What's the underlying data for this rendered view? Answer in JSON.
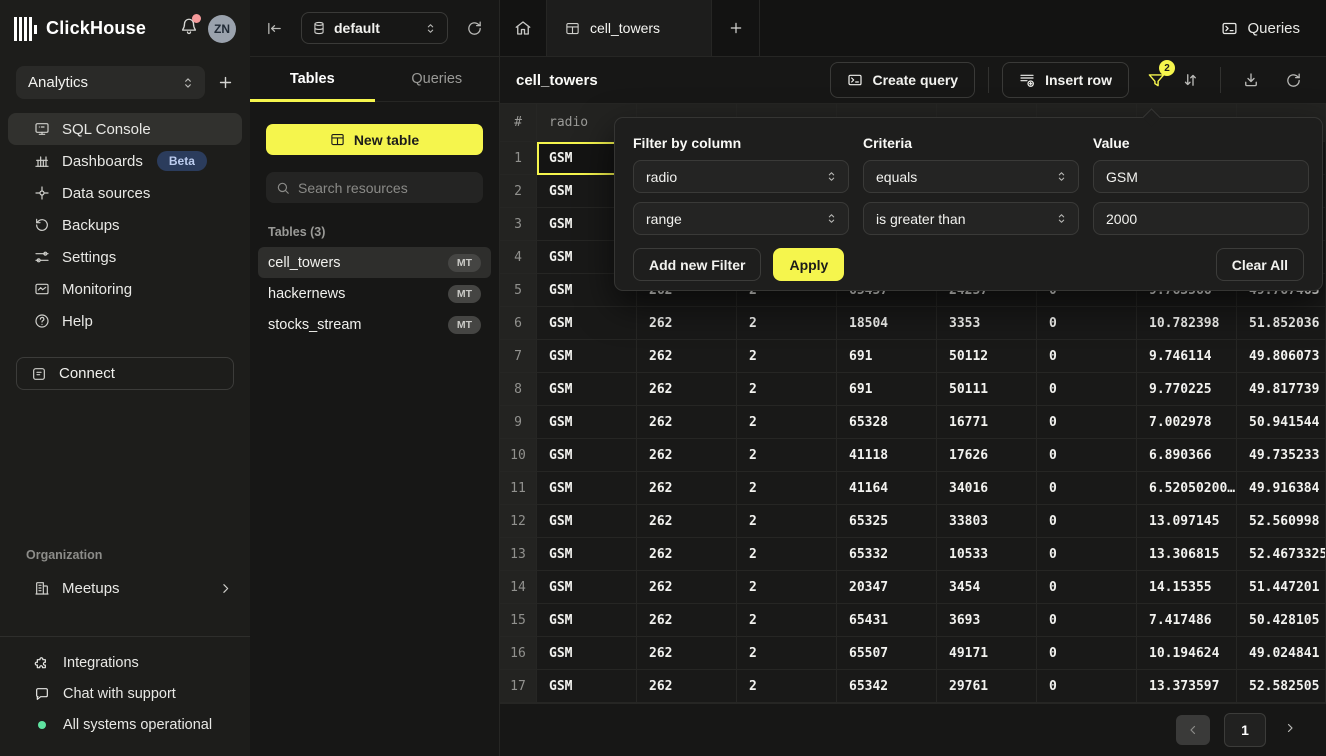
{
  "sidebar": {
    "brand": "ClickHouse",
    "avatar": "ZN",
    "workspace": "Analytics",
    "nav": [
      {
        "label": "SQL Console",
        "icon": "console-icon",
        "active": true
      },
      {
        "label": "Dashboards",
        "icon": "dashboards-icon",
        "badge": "Beta"
      },
      {
        "label": "Data sources",
        "icon": "data-sources-icon"
      },
      {
        "label": "Backups",
        "icon": "backups-icon"
      },
      {
        "label": "Settings",
        "icon": "settings-icon"
      },
      {
        "label": "Monitoring",
        "icon": "monitoring-icon"
      },
      {
        "label": "Help",
        "icon": "help-icon"
      }
    ],
    "connect_label": "Connect",
    "org_label": "Organization",
    "meetups_label": "Meetups",
    "footer": [
      {
        "label": "Integrations",
        "icon": "integrations-icon"
      },
      {
        "label": "Chat with support",
        "icon": "chat-icon"
      },
      {
        "label": "All systems operational",
        "icon": "status-dot"
      }
    ]
  },
  "explorer": {
    "database": "default",
    "tabs": [
      {
        "label": "Tables",
        "active": true
      },
      {
        "label": "Queries",
        "active": false
      }
    ],
    "new_table_label": "New table",
    "search_placeholder": "Search resources",
    "section_label": "Tables (3)",
    "tables": [
      {
        "name": "cell_towers",
        "badge": "MT",
        "selected": true
      },
      {
        "name": "hackernews",
        "badge": "MT",
        "selected": false
      },
      {
        "name": "stocks_stream",
        "badge": "MT",
        "selected": false
      }
    ]
  },
  "main": {
    "tab_label": "cell_towers",
    "queries_label": "Queries",
    "title": "cell_towers",
    "toolbar": {
      "create_query_label": "Create query",
      "insert_row_label": "Insert row",
      "filter_count": "2"
    },
    "pagination": {
      "page": "1"
    }
  },
  "filter_panel": {
    "headers": {
      "column": "Filter by column",
      "criteria": "Criteria",
      "value": "Value"
    },
    "rows": [
      {
        "column": "radio",
        "criteria": "equals",
        "value": "GSM"
      },
      {
        "column": "range",
        "criteria": "is greater than",
        "value": "2000"
      }
    ],
    "add_label": "Add new Filter",
    "apply_label": "Apply",
    "clear_label": "Clear All"
  },
  "table": {
    "headers": [
      "#",
      "radio",
      "",
      "",
      "",
      "",
      "",
      "",
      ""
    ],
    "rows": [
      [
        "1",
        "GSM",
        "",
        "",
        "",
        "",
        "",
        "",
        ""
      ],
      [
        "2",
        "GSM",
        "",
        "",
        "",
        "",
        "",
        "",
        ""
      ],
      [
        "3",
        "GSM",
        "",
        "",
        "",
        "",
        "",
        "",
        ""
      ],
      [
        "4",
        "GSM",
        "",
        "",
        "",
        "",
        "",
        "",
        ""
      ],
      [
        "5",
        "GSM",
        "262",
        "2",
        "65457",
        "24257",
        "0",
        "9.763566",
        "49.767463"
      ],
      [
        "6",
        "GSM",
        "262",
        "2",
        "18504",
        "3353",
        "0",
        "10.782398",
        "51.852036"
      ],
      [
        "7",
        "GSM",
        "262",
        "2",
        "691",
        "50112",
        "0",
        "9.746114",
        "49.806073"
      ],
      [
        "8",
        "GSM",
        "262",
        "2",
        "691",
        "50111",
        "0",
        "9.770225",
        "49.817739"
      ],
      [
        "9",
        "GSM",
        "262",
        "2",
        "65328",
        "16771",
        "0",
        "7.002978",
        "50.941544"
      ],
      [
        "10",
        "GSM",
        "262",
        "2",
        "41118",
        "17626",
        "0",
        "6.890366",
        "49.735233"
      ],
      [
        "11",
        "GSM",
        "262",
        "2",
        "41164",
        "34016",
        "0",
        "6.52050200…",
        "49.916384"
      ],
      [
        "12",
        "GSM",
        "262",
        "2",
        "65325",
        "33803",
        "0",
        "13.097145",
        "52.560998"
      ],
      [
        "13",
        "GSM",
        "262",
        "2",
        "65332",
        "10533",
        "0",
        "13.306815",
        "52.4673325"
      ],
      [
        "14",
        "GSM",
        "262",
        "2",
        "20347",
        "3454",
        "0",
        "14.15355",
        "51.447201"
      ],
      [
        "15",
        "GSM",
        "262",
        "2",
        "65431",
        "3693",
        "0",
        "7.417486",
        "50.428105"
      ],
      [
        "16",
        "GSM",
        "262",
        "2",
        "65507",
        "49171",
        "0",
        "10.194624",
        "49.024841"
      ],
      [
        "17",
        "GSM",
        "262",
        "2",
        "65342",
        "29761",
        "0",
        "13.373597",
        "52.582505"
      ]
    ],
    "selected_cell": {
      "row": 0,
      "col": 1
    }
  },
  "colors": {
    "accent_yellow": "#F5F54D",
    "beta_badge_bg": "#2B3C5C",
    "status_green": "#5FE3A1",
    "notification_red": "#F59A9A"
  }
}
